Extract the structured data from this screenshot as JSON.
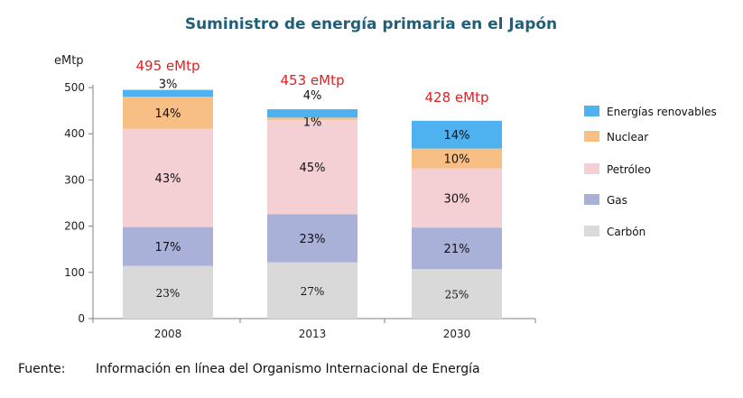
{
  "chart_data": {
    "type": "bar",
    "stacked": true,
    "title": "Suministro de energía primaria en el Japón",
    "ylabel": "eMtp",
    "ylim": [
      0,
      500
    ],
    "yticks": [
      0,
      100,
      200,
      300,
      400,
      500
    ],
    "categories": [
      "2008",
      "2013",
      "2030"
    ],
    "totals": [
      495,
      453,
      428
    ],
    "total_labels": [
      "495 eMtp",
      "453 eMtp",
      "428 eMtp"
    ],
    "series": [
      {
        "name": "Carbón",
        "values": [
          114,
          122,
          107
        ],
        "labels": [
          "23%",
          "27%",
          "25%"
        ]
      },
      {
        "name": "Gas",
        "values": [
          84,
          104,
          90
        ],
        "labels": [
          "17%",
          "23%",
          "21%"
        ]
      },
      {
        "name": "Petróleo",
        "values": [
          213,
          204,
          128
        ],
        "labels": [
          "43%",
          "45%",
          "30%"
        ]
      },
      {
        "name": "Nuclear",
        "values": [
          69,
          5,
          43
        ],
        "labels": [
          "14%",
          "1%",
          "10%"
        ]
      },
      {
        "name": "Energías renovables",
        "values": [
          15,
          18,
          60
        ],
        "labels": [
          "3%",
          "4%",
          "14%"
        ]
      }
    ],
    "legend": [
      "Energías renovables",
      "Nuclear",
      "Petróleo",
      "Gas",
      "Carbón"
    ],
    "legend_position": "right",
    "grid": false,
    "colors": {
      "Carbón": "#d9d9d9",
      "Gas": "#a9b1d9",
      "Petróleo": "#f4cfd4",
      "Nuclear": "#f8bf84",
      "Energías renovables": "#4db2ef",
      "title": "#1f5f7a",
      "total": "#e41e1e"
    }
  },
  "source": {
    "label": "Fuente:",
    "text": "Información en línea del Organismo Internacional de Energía"
  }
}
